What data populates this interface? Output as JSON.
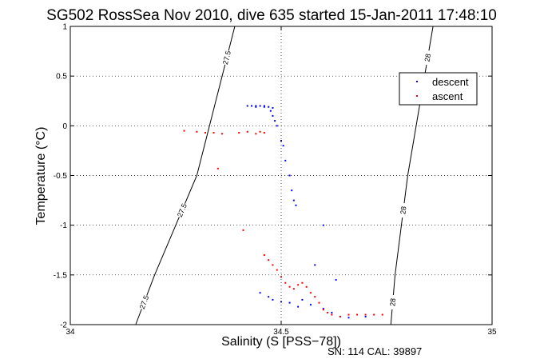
{
  "chart_data": {
    "type": "scatter",
    "title": "SG502 RossSea Nov 2010, dive 635 started 15-Jan-2011 17:48:10",
    "xlabel": "Salinity (S [PSS−78])",
    "ylabel": "Temperature (°C)",
    "xlim": [
      34,
      35
    ],
    "ylim": [
      -2,
      1
    ],
    "x_ticks": [
      34,
      34.5,
      35
    ],
    "x_tick_labels": [
      "34",
      "34.5",
      "35"
    ],
    "y_ticks": [
      -2,
      -1.5,
      -1,
      -0.5,
      0,
      0.5,
      1
    ],
    "y_tick_labels": [
      "-2",
      "-1.5",
      "-1",
      "-0.5",
      "0",
      "0.5",
      "1"
    ],
    "grid": true,
    "legend_position": "top-right",
    "series": [
      {
        "name": "descent",
        "color": "#0000ff",
        "points": [
          [
            34.42,
            0.2
          ],
          [
            34.43,
            0.2
          ],
          [
            34.44,
            0.2
          ],
          [
            34.45,
            0.2
          ],
          [
            34.46,
            0.19
          ],
          [
            34.47,
            0.19
          ],
          [
            34.48,
            0.18
          ],
          [
            34.475,
            0.15
          ],
          [
            34.48,
            0.1
          ],
          [
            34.485,
            0.05
          ],
          [
            34.49,
            0.0
          ],
          [
            34.5,
            -0.15
          ],
          [
            34.505,
            -0.2
          ],
          [
            34.51,
            -0.35
          ],
          [
            34.52,
            -0.5
          ],
          [
            34.525,
            -0.65
          ],
          [
            34.53,
            -0.75
          ],
          [
            34.535,
            -0.8
          ],
          [
            34.6,
            -1.0
          ],
          [
            34.58,
            -1.4
          ],
          [
            34.48,
            -1.75
          ],
          [
            34.5,
            -1.77
          ],
          [
            34.52,
            -1.78
          ],
          [
            34.55,
            -1.75
          ],
          [
            34.57,
            -1.8
          ],
          [
            34.6,
            -1.84
          ],
          [
            34.62,
            -1.88
          ],
          [
            34.64,
            -1.92
          ],
          [
            34.66,
            -1.93
          ],
          [
            34.7,
            -1.92
          ],
          [
            34.63,
            -1.55
          ],
          [
            34.45,
            -1.68
          ],
          [
            34.47,
            -1.72
          ],
          [
            34.54,
            -1.82
          ],
          [
            34.44,
            0.19
          ],
          [
            34.46,
            0.2
          ]
        ]
      },
      {
        "name": "ascent",
        "color": "#ff0000",
        "points": [
          [
            34.27,
            -0.05
          ],
          [
            34.32,
            -0.07
          ],
          [
            34.36,
            -0.08
          ],
          [
            34.4,
            -0.07
          ],
          [
            34.42,
            -0.06
          ],
          [
            34.44,
            -0.08
          ],
          [
            34.45,
            -0.06
          ],
          [
            34.46,
            -0.07
          ],
          [
            34.35,
            -0.43
          ],
          [
            34.41,
            -1.05
          ],
          [
            34.46,
            -1.3
          ],
          [
            34.47,
            -1.35
          ],
          [
            34.48,
            -1.4
          ],
          [
            34.49,
            -1.45
          ],
          [
            34.5,
            -1.52
          ],
          [
            34.51,
            -1.58
          ],
          [
            34.52,
            -1.62
          ],
          [
            34.53,
            -1.64
          ],
          [
            34.54,
            -1.6
          ],
          [
            34.55,
            -1.58
          ],
          [
            34.56,
            -1.62
          ],
          [
            34.57,
            -1.68
          ],
          [
            34.58,
            -1.72
          ],
          [
            34.59,
            -1.78
          ],
          [
            34.6,
            -1.85
          ],
          [
            34.61,
            -1.88
          ],
          [
            34.62,
            -1.9
          ],
          [
            34.64,
            -1.92
          ],
          [
            34.66,
            -1.9
          ],
          [
            34.68,
            -1.9
          ],
          [
            34.7,
            -1.9
          ],
          [
            34.72,
            -1.9
          ],
          [
            34.74,
            -1.9
          ],
          [
            34.3,
            -0.06
          ],
          [
            34.34,
            -0.07
          ]
        ]
      }
    ],
    "contours": [
      {
        "label": "27.5",
        "points": [
          [
            34.39,
            1.0
          ],
          [
            34.3,
            -0.5
          ],
          [
            34.2,
            -1.5
          ],
          [
            34.155,
            -2.0
          ]
        ]
      },
      {
        "label": "28",
        "points": [
          [
            34.86,
            1.0
          ],
          [
            34.8,
            -0.5
          ],
          [
            34.77,
            -1.5
          ],
          [
            34.76,
            -2.0
          ]
        ]
      }
    ]
  },
  "legend": {
    "descent_label": "descent",
    "ascent_label": "ascent"
  },
  "footer": {
    "serial": "SN: 114  CAL: 39897"
  }
}
